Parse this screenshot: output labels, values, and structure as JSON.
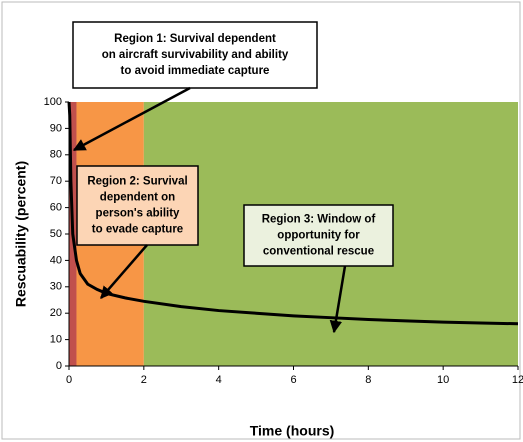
{
  "chart_data": {
    "type": "line",
    "x_label": "Time (hours)",
    "y_label": "Rescuability (percent)",
    "x": [
      0,
      0.02,
      0.05,
      0.1,
      0.2,
      0.3,
      0.5,
      0.75,
      1,
      1.5,
      2,
      3,
      4,
      5,
      6,
      7,
      8,
      9,
      10,
      11,
      12
    ],
    "series": [
      {
        "color": "#000000",
        "values": [
          100,
          95,
          70,
          50,
          40,
          35,
          31,
          29,
          27.5,
          25.8,
          24.5,
          22.5,
          21,
          20,
          19,
          18.3,
          17.6,
          17.1,
          16.6,
          16.3,
          16
        ]
      }
    ],
    "regions": [
      {
        "x0": 0,
        "x1": 0.2,
        "color": "#c0504d"
      },
      {
        "x0": 0.2,
        "x1": 2,
        "color": "#f79646"
      },
      {
        "x0": 2,
        "x1": 12,
        "color": "#9bbb59"
      }
    ],
    "annotations": [
      {
        "lines": [
          "Region 1: Survival dependent",
          "on aircraft survivability and ability",
          "to avoid immediate capture"
        ],
        "color": "#ffffff"
      },
      {
        "lines": [
          "Region 2: Survival",
          "dependent on",
          "person's ability",
          "to evade capture"
        ],
        "color": "#fcd5b5"
      },
      {
        "lines": [
          "Region 3: Window of",
          "opportunity for",
          "conventional rescue"
        ],
        "color": "#ebf1de"
      }
    ],
    "xlim": [
      0,
      12
    ],
    "xticks": [
      0,
      2,
      4,
      6,
      8,
      10,
      12
    ],
    "ylim": [
      0,
      100
    ],
    "yticks": [
      0,
      10,
      20,
      30,
      40,
      50,
      60,
      70,
      80,
      90,
      100
    ]
  }
}
